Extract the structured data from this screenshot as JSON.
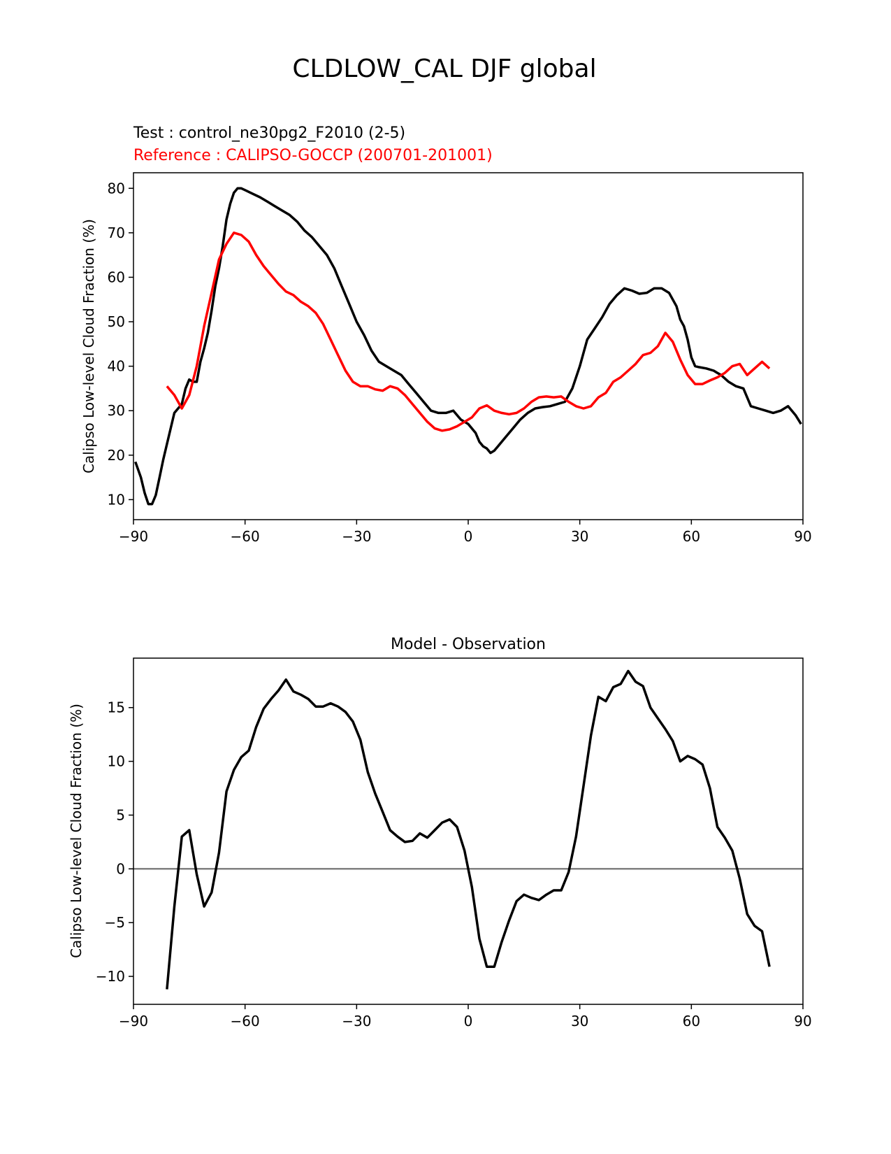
{
  "figure_title": "CLDLOW_CAL DJF global",
  "colors": {
    "test": "#000000",
    "reference": "#ff0000",
    "zero_line": "#808080"
  },
  "chart_data": [
    {
      "type": "line",
      "test_label": "Test : control_ne30pg2_F2010 (2-5)",
      "reference_label": "Reference : CALIPSO-GOCCP (200701-201001)",
      "ylabel": "Calipso Low-level Cloud Fraction (%)",
      "xlim": [
        -90,
        90
      ],
      "ylim": [
        5.5,
        83.5
      ],
      "xticks": [
        -90,
        -60,
        -30,
        0,
        30,
        60,
        90
      ],
      "xtick_labels": [
        "−90",
        "−60",
        "−30",
        "0",
        "30",
        "60",
        "90"
      ],
      "yticks": [
        10,
        20,
        30,
        40,
        50,
        60,
        70,
        80
      ],
      "ytick_labels": [
        "10",
        "20",
        "30",
        "40",
        "50",
        "60",
        "70",
        "80"
      ],
      "series": [
        {
          "name": "test",
          "x": [
            -89.5,
            -88,
            -87,
            -86,
            -85,
            -84,
            -83,
            -82,
            -81,
            -80,
            -79,
            -78,
            -77,
            -76,
            -75,
            -74,
            -73,
            -72,
            -71,
            -70,
            -69,
            -68,
            -67,
            -66,
            -65,
            -64,
            -63,
            -62,
            -61,
            -60,
            -58,
            -56,
            -54,
            -52,
            -50,
            -48,
            -46,
            -44,
            -42,
            -40,
            -38,
            -36,
            -34,
            -32,
            -30,
            -28,
            -26,
            -24,
            -22,
            -20,
            -18,
            -16,
            -14,
            -12,
            -10,
            -8,
            -6,
            -4,
            -2,
            0,
            2,
            3,
            4,
            5,
            6,
            7,
            8,
            10,
            12,
            14,
            16,
            18,
            20,
            22,
            24,
            26,
            28,
            30,
            32,
            34,
            36,
            38,
            40,
            42,
            44,
            46,
            48,
            50,
            52,
            54,
            56,
            57,
            58,
            59,
            60,
            61,
            62,
            64,
            66,
            67,
            68,
            70,
            72,
            74,
            76,
            78,
            80,
            82,
            84,
            86,
            88,
            89.5
          ],
          "values": [
            18.5,
            15,
            11.5,
            9,
            9,
            11,
            15,
            19,
            22.5,
            26,
            29.5,
            30.5,
            31.5,
            35,
            37,
            36.5,
            36.5,
            41,
            44,
            47.5,
            52.5,
            58,
            62,
            67,
            73,
            76.5,
            79,
            80,
            80,
            79.6,
            78.8,
            78,
            77,
            76,
            75,
            74,
            72.5,
            70.5,
            69,
            67,
            65,
            62,
            58,
            54,
            50,
            47,
            43.5,
            41,
            40,
            39,
            38,
            36,
            34,
            32,
            30,
            29.5,
            29.5,
            30,
            28,
            27,
            25,
            23,
            22,
            21.5,
            20.5,
            21,
            22,
            24,
            26,
            28,
            29.5,
            30.5,
            30.8,
            31,
            31.5,
            32,
            35,
            40,
            46,
            48.5,
            51,
            54,
            56,
            57.5,
            57,
            56.3,
            56.5,
            57.5,
            57.5,
            56.5,
            53.5,
            50.5,
            49,
            46,
            42,
            40,
            39.8,
            39.5,
            39,
            38.5,
            38,
            36.5,
            35.5,
            35,
            31,
            30.5,
            30,
            29.5,
            30,
            31,
            29,
            27
          ]
        },
        {
          "name": "reference",
          "x": [
            -81,
            -79,
            -77,
            -75,
            -73,
            -71,
            -69,
            -67,
            -65,
            -63,
            -61,
            -59,
            -57,
            -55,
            -53,
            -51,
            -49,
            -47,
            -45,
            -43,
            -41,
            -39,
            -37,
            -35,
            -33,
            -31,
            -29,
            -27,
            -25,
            -23,
            -21,
            -19,
            -17,
            -15,
            -13,
            -11,
            -9,
            -7,
            -5,
            -3,
            -1,
            1,
            3,
            5,
            7,
            9,
            11,
            13,
            15,
            17,
            19,
            21,
            23,
            25,
            27,
            29,
            31,
            33,
            35,
            37,
            39,
            41,
            43,
            45,
            47,
            49,
            51,
            53,
            55,
            57,
            59,
            61,
            63,
            65,
            67,
            69,
            71,
            73,
            75,
            77,
            79,
            81
          ],
          "values": [
            35.5,
            33.5,
            30.5,
            33.5,
            40,
            49,
            56.5,
            64,
            67.5,
            70,
            69.5,
            68,
            65,
            62.5,
            60.5,
            58.5,
            56.8,
            56,
            54.5,
            53.5,
            52,
            49.5,
            46,
            42.5,
            39,
            36.5,
            35.5,
            35.5,
            34.8,
            34.5,
            35.5,
            35,
            33.5,
            31.5,
            29.5,
            27.5,
            26,
            25.5,
            25.8,
            26.5,
            27.5,
            28.5,
            30.5,
            31.2,
            30,
            29.5,
            29.2,
            29.5,
            30.5,
            32,
            33,
            33.2,
            33,
            33.2,
            32,
            31,
            30.5,
            31,
            33,
            34,
            36.5,
            37.5,
            39,
            40.5,
            42.5,
            43,
            44.5,
            47.5,
            45.5,
            41.5,
            38,
            36,
            36,
            36.8,
            37.5,
            38.5,
            40,
            40.5,
            38,
            39.5,
            41,
            39.5
          ]
        }
      ]
    },
    {
      "type": "line",
      "title": "Model - Observation",
      "ylabel": "Calipso Low-level Cloud Fraction (%)",
      "xlim": [
        -90,
        90
      ],
      "ylim": [
        -12.6,
        19.6
      ],
      "xticks": [
        -90,
        -60,
        -30,
        0,
        30,
        60,
        90
      ],
      "xtick_labels": [
        "−90",
        "−60",
        "−30",
        "0",
        "30",
        "60",
        "90"
      ],
      "yticks": [
        -10,
        -5,
        0,
        5,
        10,
        15
      ],
      "ytick_labels": [
        "−10",
        "−5",
        "0",
        "5",
        "10",
        "15"
      ],
      "zero_line": 0,
      "series": [
        {
          "name": "difference",
          "x": [
            -81,
            -79,
            -77,
            -75,
            -73,
            -71,
            -69,
            -67,
            -65,
            -63,
            -61,
            -59,
            -57,
            -55,
            -53,
            -51,
            -49,
            -47,
            -45,
            -43,
            -41,
            -39,
            -37,
            -35,
            -33,
            -31,
            -29,
            -27,
            -25,
            -23,
            -21,
            -19,
            -17,
            -15,
            -13,
            -11,
            -9,
            -7,
            -5,
            -3,
            -1,
            1,
            3,
            5,
            7,
            9,
            11,
            13,
            15,
            17,
            19,
            21,
            23,
            25,
            27,
            29,
            31,
            33,
            35,
            37,
            39,
            41,
            43,
            45,
            47,
            49,
            51,
            53,
            55,
            57,
            59,
            61,
            63,
            65,
            67,
            69,
            71,
            73,
            75,
            77,
            79,
            81
          ],
          "values": [
            -11.2,
            -3.5,
            3,
            3.6,
            -0.5,
            -3.5,
            -2.2,
            1.5,
            7.2,
            9.2,
            10.4,
            11,
            13.2,
            14.9,
            15.8,
            16.6,
            17.6,
            16.5,
            16.2,
            15.8,
            15.1,
            15.1,
            15.4,
            15.1,
            14.6,
            13.7,
            12,
            9,
            7,
            5.3,
            3.6,
            3,
            2.5,
            2.6,
            3.3,
            2.9,
            3.6,
            4.3,
            4.6,
            3.9,
            1.7,
            -1.7,
            -6.5,
            -9.1,
            -9.1,
            -6.8,
            -4.8,
            -3,
            -2.4,
            -2.7,
            -2.9,
            -2.4,
            -2,
            -2,
            -0.3,
            3,
            7.7,
            12.4,
            16,
            15.6,
            16.9,
            17.2,
            18.4,
            17.4,
            17,
            15,
            14,
            13,
            11.9,
            10,
            10.5,
            10.2,
            9.7,
            7.5,
            3.9,
            2.9,
            1.7,
            -0.9,
            -4.2,
            -5.3,
            -5.8,
            -9.1
          ]
        }
      ]
    }
  ]
}
